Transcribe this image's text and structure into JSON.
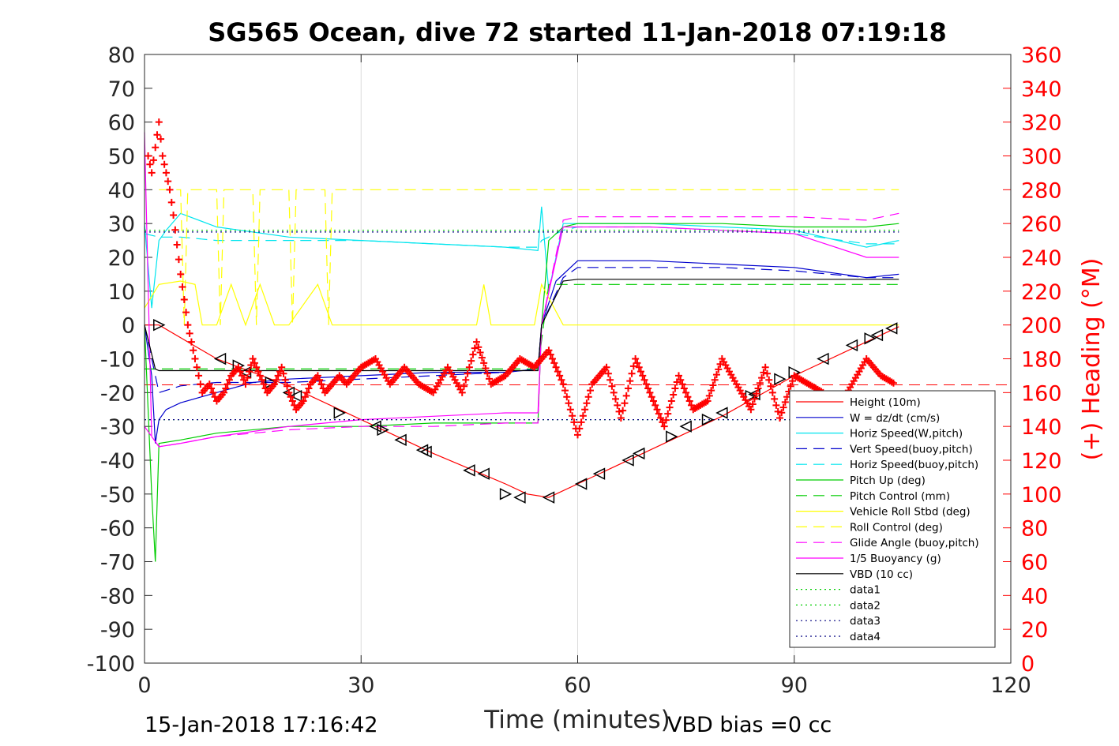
{
  "chart_data": {
    "type": "line",
    "title": "SG565 Ocean, dive 72 started 11-Jan-2018 07:19:18",
    "xlabel": "Time (minutes)",
    "ylabel": "",
    "y2label": "(+) Heading (°M)",
    "xlim": [
      0,
      120
    ],
    "ylim": [
      -100,
      80
    ],
    "y2lim": [
      0,
      360
    ],
    "x_ticks": [
      "0",
      "30",
      "60",
      "90",
      "120"
    ],
    "y_ticks": [
      "-100",
      "-90",
      "-80",
      "-70",
      "-60",
      "-50",
      "-40",
      "-30",
      "-20",
      "-10",
      "0",
      "10",
      "20",
      "30",
      "40",
      "50",
      "60",
      "70",
      "80"
    ],
    "y2_ticks": [
      "0",
      "20",
      "40",
      "60",
      "80",
      "100",
      "120",
      "140",
      "160",
      "180",
      "200",
      "220",
      "240",
      "260",
      "280",
      "300",
      "320",
      "340",
      "360"
    ],
    "grid": true,
    "legend_position": "bottom-right",
    "footer_left": "15-Jan-2018 17:16:42",
    "footer_right": "VBD bias =0 cc",
    "colors": {
      "heading": "#ff0000",
      "right_axis": "#ff0000"
    },
    "series": [
      {
        "name": "Height (10m)",
        "color": "#ff0000",
        "style": "solid",
        "x": [
          0,
          2,
          10,
          20,
          30,
          40,
          50,
          53,
          56,
          60,
          70,
          80,
          90,
          100,
          104.5
        ],
        "y": [
          0,
          0,
          -10,
          -18,
          -28,
          -38,
          -47,
          -50,
          -51,
          -47,
          -37,
          -27,
          -15,
          -5,
          -0.5
        ]
      },
      {
        "name": "W = dz/dt (cm/s)",
        "color": "#0000cd",
        "style": "solid",
        "x": [
          0,
          1,
          1.5,
          2,
          3,
          5,
          10,
          15,
          20,
          30,
          40,
          50,
          54.5,
          55,
          57,
          60,
          70,
          80,
          90,
          100,
          104.5
        ],
        "y": [
          0,
          -15,
          -35,
          -28,
          -25,
          -23,
          -20,
          -17,
          -16,
          -15,
          -14,
          -14,
          -13,
          0,
          13,
          19,
          19,
          18,
          17,
          14,
          15
        ]
      },
      {
        "name": "Horiz Speed(W,pitch)",
        "color": "#00e5ee",
        "style": "solid",
        "x": [
          0,
          1,
          2,
          3,
          5,
          10,
          20,
          30,
          40,
          50,
          54.5,
          55,
          56,
          58,
          60,
          70,
          80,
          90,
          100,
          104.5
        ],
        "y": [
          30,
          5,
          25,
          28,
          33,
          29,
          26,
          25,
          24,
          23,
          22,
          35,
          10,
          30,
          30,
          30,
          29,
          28,
          23,
          25
        ]
      },
      {
        "name": "Vert Speed(buoy,pitch)",
        "color": "#0000cd",
        "style": "dashed",
        "x": [
          0,
          2,
          5,
          10,
          20,
          30,
          40,
          50,
          54.5,
          55,
          58,
          60,
          70,
          80,
          90,
          100,
          104.5
        ],
        "y": [
          0,
          -20,
          -18,
          -17,
          -17,
          -16,
          -15,
          -14,
          -13,
          0,
          14,
          17,
          17,
          17,
          16,
          14,
          14
        ]
      },
      {
        "name": "Horiz Speed(buoy,pitch)",
        "color": "#00e5ee",
        "style": "dashed",
        "x": [
          0,
          2,
          5,
          10,
          20,
          30,
          40,
          50,
          54.5,
          55,
          58,
          60,
          70,
          80,
          90,
          100,
          104.5
        ],
        "y": [
          27,
          26,
          26,
          25,
          25,
          25,
          24,
          23,
          23,
          25,
          28,
          29,
          29,
          28,
          27,
          24,
          24
        ]
      },
      {
        "name": "Pitch Up (deg)",
        "color": "#00cc00",
        "style": "solid",
        "x": [
          0,
          1,
          1.5,
          2,
          5,
          10,
          20,
          30,
          40,
          50,
          54.5,
          55,
          56,
          58,
          60,
          70,
          80,
          90,
          100,
          104.5
        ],
        "y": [
          0,
          -50,
          -70,
          -35,
          -34,
          -32,
          -30,
          -30,
          -29,
          -29,
          -29,
          0,
          25,
          29,
          30,
          30,
          30,
          29,
          29,
          30
        ]
      },
      {
        "name": "Pitch Control (mm)",
        "color": "#00cc00",
        "style": "dashed",
        "x": [
          0,
          2,
          10,
          20,
          30,
          40,
          50,
          54.5,
          56,
          60,
          70,
          80,
          90,
          100,
          104.5
        ],
        "y": [
          -13,
          -13,
          -13,
          -13,
          -13,
          -13,
          -13,
          -13,
          12,
          12,
          12,
          12,
          12,
          12,
          12
        ]
      },
      {
        "name": "Vehicle Roll Stbd (deg)",
        "color": "#ffff00",
        "style": "solid",
        "x": [
          0,
          2,
          5,
          7,
          8,
          10,
          12,
          14,
          16,
          18,
          20,
          24,
          26,
          30,
          40,
          46,
          47,
          48,
          50,
          54,
          55,
          58,
          60,
          70,
          80,
          90,
          100,
          104.5
        ],
        "y": [
          5,
          12,
          13,
          12,
          0,
          0,
          12,
          0,
          12,
          0,
          0,
          12,
          0,
          0,
          0,
          0,
          12,
          0,
          0,
          0,
          12,
          0,
          0,
          0,
          0,
          0,
          0,
          0
        ]
      },
      {
        "name": "Roll Control (deg)",
        "color": "#ffff00",
        "style": "dashed",
        "x": [
          2,
          5,
          5.5,
          6,
          10,
          10.5,
          11,
          15,
          15.5,
          16,
          20,
          20.5,
          21,
          25,
          25.5,
          26,
          30,
          40,
          50,
          54,
          58,
          60,
          70,
          80,
          90,
          100,
          104.5
        ],
        "y": [
          40,
          40,
          0,
          40,
          40,
          0,
          40,
          40,
          0,
          40,
          40,
          0,
          40,
          40,
          0,
          40,
          40,
          40,
          40,
          40,
          40,
          40,
          40,
          40,
          40,
          40,
          40
        ]
      },
      {
        "name": "Glide Angle (buoy,pitch)",
        "color": "#ff00ff",
        "style": "dashed",
        "x": [
          0,
          2,
          5,
          10,
          20,
          30,
          40,
          50,
          54.5,
          55,
          58,
          60,
          70,
          80,
          90,
          100,
          104.5
        ],
        "y": [
          -30,
          -36,
          -35,
          -33,
          -31,
          -30,
          -30,
          -29,
          -29,
          0,
          31,
          32,
          32,
          32,
          32,
          31,
          33
        ]
      },
      {
        "name": "1/5 Buoyancy (g)",
        "color": "#ff00ff",
        "style": "solid",
        "x": [
          0,
          1,
          2,
          5,
          10,
          20,
          30,
          40,
          50,
          54.5,
          55,
          58,
          60,
          70,
          80,
          90,
          100,
          104.5
        ],
        "y": [
          57,
          -33,
          -36,
          -35,
          -33,
          -30,
          -28,
          -27,
          -26,
          -26,
          0,
          29,
          29,
          29,
          28,
          27,
          20,
          20
        ]
      },
      {
        "name": "VBD (10 cc)",
        "color": "#000000",
        "style": "solid",
        "x": [
          0,
          1.5,
          2,
          10,
          20,
          30,
          40,
          50,
          54.5,
          55,
          58,
          60,
          70,
          80,
          90,
          100,
          104.5
        ],
        "y": [
          0,
          -13,
          -13.5,
          -13.5,
          -13.5,
          -13.5,
          -13.5,
          -13.5,
          -13.5,
          0,
          13,
          13.5,
          13.5,
          13.5,
          13.5,
          13.5,
          13.5
        ]
      },
      {
        "name": "data1",
        "color": "#00cc00",
        "style": "dotted",
        "x": [
          0,
          104.5
        ],
        "y": [
          -28,
          -28
        ]
      },
      {
        "name": "data2",
        "color": "#00cc00",
        "style": "dotted",
        "x": [
          0,
          104.5
        ],
        "y": [
          28,
          28
        ]
      },
      {
        "name": "data3",
        "color": "#000080",
        "style": "dotted",
        "x": [
          0,
          104.5
        ],
        "y": [
          -28,
          -28
        ]
      },
      {
        "name": "data4",
        "color": "#000080",
        "style": "dotted",
        "x": [
          0,
          104.5
        ],
        "y": [
          27.5,
          27.5
        ]
      }
    ],
    "reference_lines": [
      {
        "color": "#ff0000",
        "style": "dashed",
        "y": -17.7
      }
    ],
    "heading_series": {
      "color": "#ff0000",
      "marker": "+",
      "axis": "right",
      "x": [
        0.5,
        1,
        1.5,
        2,
        2.5,
        3,
        3.5,
        4,
        5,
        6,
        7,
        8,
        9,
        10,
        11,
        12,
        13,
        14,
        15,
        16,
        17,
        18,
        19,
        20,
        21,
        22,
        23,
        24,
        25,
        26,
        27,
        28,
        30,
        32,
        34,
        36,
        38,
        40,
        42,
        44,
        46,
        48,
        50,
        52,
        54,
        56,
        58,
        60,
        62,
        64,
        66,
        68,
        70,
        72,
        74,
        76,
        78,
        80,
        82,
        84,
        86,
        88,
        90,
        92,
        94,
        96,
        98,
        100,
        102,
        104
      ],
      "y": [
        300,
        290,
        305,
        320,
        300,
        290,
        280,
        265,
        230,
        200,
        180,
        160,
        165,
        155,
        160,
        170,
        175,
        165,
        180,
        170,
        160,
        165,
        175,
        160,
        150,
        155,
        165,
        170,
        160,
        165,
        170,
        165,
        175,
        180,
        165,
        175,
        165,
        160,
        175,
        160,
        190,
        165,
        170,
        180,
        175,
        185,
        165,
        135,
        165,
        175,
        145,
        180,
        160,
        140,
        170,
        150,
        155,
        180,
        165,
        150,
        175,
        145,
        170,
        165,
        160,
        150,
        165,
        180,
        170,
        165
      ]
    },
    "triangle_markers": {
      "color": "#000000",
      "x": [
        2,
        10.5,
        13,
        14,
        17.5,
        20,
        21,
        27,
        32,
        33,
        35.5,
        38.5,
        39,
        45,
        47,
        50,
        52,
        56,
        60.5,
        63,
        67,
        68.5,
        73,
        75,
        78,
        80,
        84,
        84.5,
        88,
        90,
        94,
        98,
        100.5,
        101.5,
        103.5
      ],
      "y": [
        0,
        -10,
        -12,
        -14,
        -17,
        -20,
        -21,
        -26,
        -30,
        -31,
        -34,
        -37,
        -37.5,
        -43,
        -44,
        -50,
        -51,
        -51,
        -47,
        -44,
        -40,
        -38,
        -33,
        -30,
        -28,
        -26,
        -21,
        -20.5,
        -16,
        -14,
        -10,
        -6,
        -4,
        -3,
        -1
      ],
      "direction": [
        "r",
        "l",
        "r",
        "l",
        "r",
        "l",
        "l",
        "r",
        "l",
        "r",
        "l",
        "l",
        "l",
        "l",
        "l",
        "r",
        "l",
        "l",
        "l",
        "l",
        "l",
        "l",
        "r",
        "l",
        "r",
        "l",
        "r",
        "l",
        "r",
        "r",
        "l",
        "l",
        "r",
        "l",
        "l"
      ]
    }
  }
}
